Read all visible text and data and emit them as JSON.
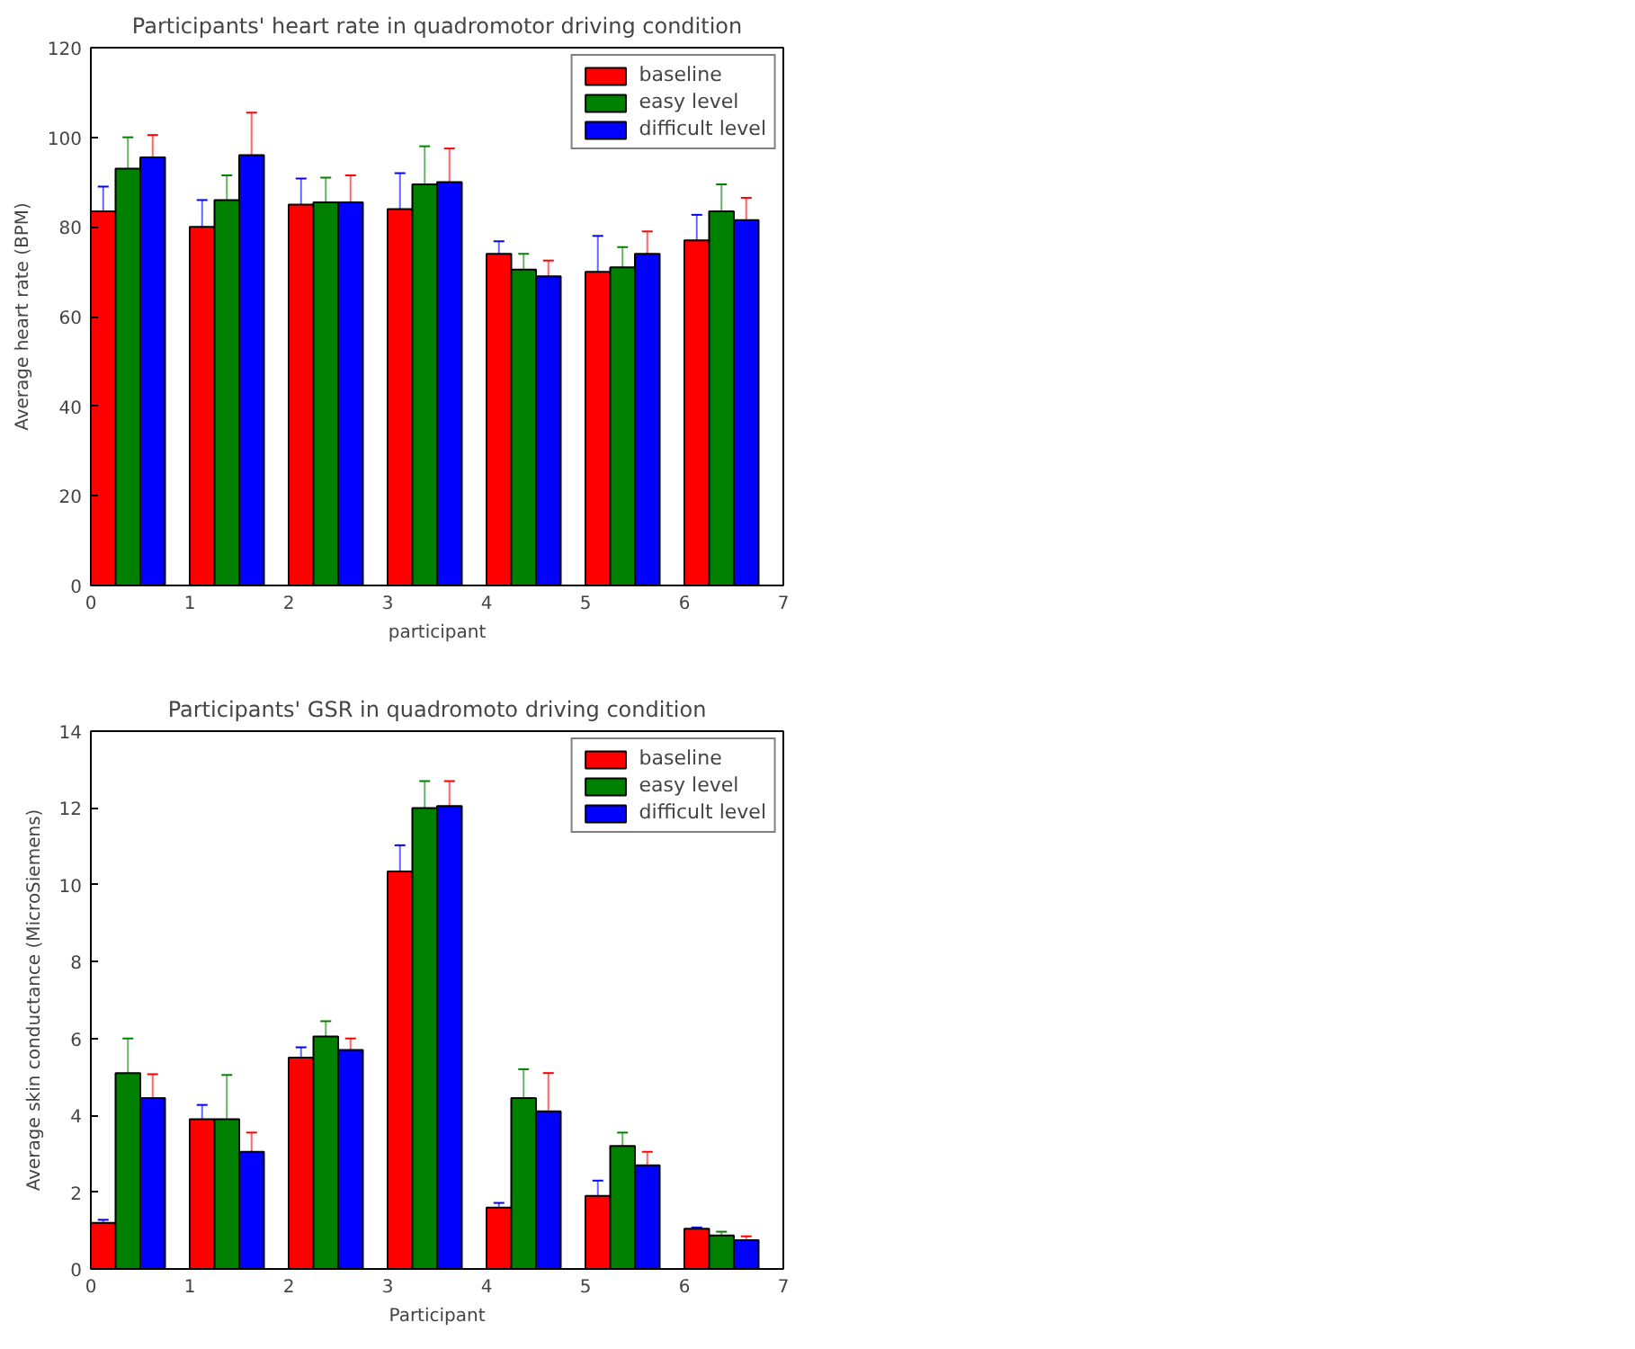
{
  "chart_data": [
    {
      "type": "bar",
      "title": "Participants' heart rate in quadromotor driving condition",
      "xlabel": "participant",
      "ylabel": "Average heart rate (BPM)",
      "xlim": [
        0,
        7
      ],
      "xticks": [
        0,
        1,
        2,
        3,
        4,
        5,
        6,
        7
      ],
      "ylim": [
        0,
        120
      ],
      "yticks": [
        0,
        20,
        40,
        60,
        80,
        100,
        120
      ],
      "grid": false,
      "legend": "top right",
      "series": [
        {
          "name": "baseline",
          "color": "#ff0000",
          "x": [
            0.125,
            1.125,
            2.125,
            3.125,
            4.125,
            5.125,
            6.125
          ],
          "values": [
            83.5,
            80,
            85,
            84,
            74,
            70,
            77
          ],
          "errors": [
            5.5,
            6,
            5.8,
            8,
            2.8,
            8,
            5.7
          ]
        },
        {
          "name": "easy level",
          "color": "#008000",
          "x": [
            0.375,
            1.375,
            2.375,
            3.375,
            4.375,
            5.375,
            6.375
          ],
          "values": [
            93,
            86,
            85.5,
            89.5,
            70.5,
            71,
            83.5
          ],
          "errors": [
            7,
            5.5,
            5.5,
            8.5,
            3.5,
            4.5,
            6
          ]
        },
        {
          "name": "difficult level",
          "color": "#0000ff",
          "x": [
            0.625,
            1.625,
            2.625,
            3.625,
            4.625,
            5.625,
            6.625
          ],
          "values": [
            95.5,
            96,
            85.5,
            90,
            69,
            74,
            81.5
          ],
          "errors": [
            5,
            9.5,
            6,
            7.5,
            3.5,
            5,
            5
          ]
        }
      ]
    },
    {
      "type": "bar",
      "title": "Participants' GSR in quadromoto driving condition",
      "xlabel": "Participant",
      "ylabel": "Average skin conductance (MicroSiemens)",
      "xlim": [
        0,
        7
      ],
      "xticks": [
        0,
        1,
        2,
        3,
        4,
        5,
        6,
        7
      ],
      "ylim": [
        0,
        14
      ],
      "yticks": [
        0,
        2,
        4,
        6,
        8,
        10,
        12,
        14
      ],
      "grid": false,
      "legend": "top right",
      "series": [
        {
          "name": "baseline",
          "color": "#ff0000",
          "x": [
            0.125,
            1.125,
            2.125,
            3.125,
            4.125,
            5.125,
            6.125
          ],
          "values": [
            1.2,
            3.9,
            5.5,
            10.35,
            1.6,
            1.9,
            1.05
          ],
          "errors": [
            0.08,
            0.37,
            0.27,
            0.68,
            0.12,
            0.4,
            0.03
          ]
        },
        {
          "name": "easy level",
          "color": "#008000",
          "x": [
            0.375,
            1.375,
            2.375,
            3.375,
            4.375,
            5.375,
            6.375
          ],
          "values": [
            5.1,
            3.9,
            6.05,
            12.0,
            4.45,
            3.2,
            0.87
          ],
          "errors": [
            0.9,
            1.15,
            0.4,
            0.7,
            0.75,
            0.35,
            0.1
          ]
        },
        {
          "name": "difficult level",
          "color": "#0000ff",
          "x": [
            0.625,
            1.625,
            2.625,
            3.625,
            4.625,
            5.625,
            6.625
          ],
          "values": [
            4.45,
            3.05,
            5.7,
            12.05,
            4.1,
            2.7,
            0.75
          ],
          "errors": [
            0.62,
            0.5,
            0.3,
            0.65,
            1.0,
            0.35,
            0.1
          ]
        }
      ]
    }
  ]
}
